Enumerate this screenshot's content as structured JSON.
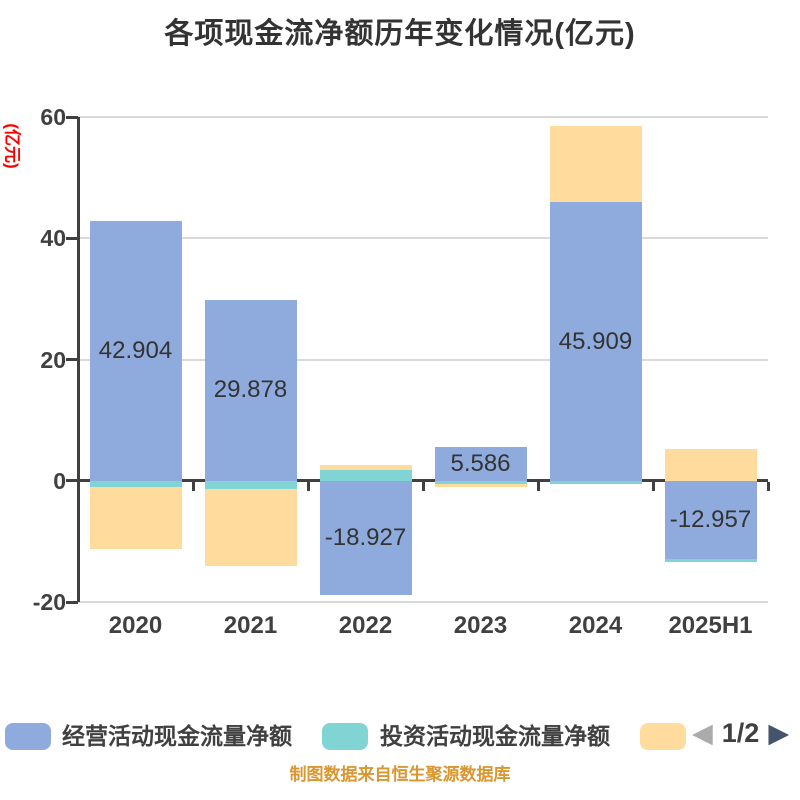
{
  "title": "各项现金流净额历年变化情况(亿元)",
  "chart_data": {
    "type": "bar",
    "stacked": true,
    "title": "各项现金流净额历年变化情况(亿元)",
    "categories": [
      "2020",
      "2021",
      "2022",
      "2023",
      "2024",
      "2025H1"
    ],
    "series": [
      {
        "name": "经营活动现金流量净额",
        "color": "#8FAADC",
        "values": [
          42.904,
          29.878,
          -18.927,
          5.586,
          45.909,
          -12.957
        ],
        "labels": [
          "42.904",
          "29.878",
          "-18.927",
          "5.586",
          "45.909",
          "-12.957"
        ],
        "labels_visible": true
      },
      {
        "name": "投资活动现金流量净额",
        "color": "#80D4D4",
        "values": [
          -1.0,
          -1.3,
          1.7,
          -0.5,
          -0.6,
          -0.4
        ],
        "labels": [],
        "labels_visible": false
      },
      {
        "name": "",
        "color": "#FFDC9E",
        "values": [
          -10.2,
          -12.7,
          0.9,
          -0.5,
          12.6,
          5.2
        ],
        "labels": [],
        "labels_visible": false
      }
    ],
    "xlabel": "",
    "ylabel": "(亿元)",
    "ylabel_color": "#FF0000",
    "ylim": [
      -20,
      60
    ],
    "yticks": [
      60,
      40,
      20,
      0,
      -20
    ],
    "grid": true,
    "legend_position": "bottom"
  },
  "legend": {
    "items": [
      {
        "label": "经营活动现金流量净额",
        "color": "#8FAADC"
      },
      {
        "label": "投资活动现金流量净额",
        "color": "#80D4D4"
      },
      {
        "label": "",
        "color": "#FFDC9E"
      }
    ],
    "pager": {
      "prev_icon": "◀",
      "page_indicator": "1/2",
      "next_icon": "▶",
      "prev_color": "#ABABAB",
      "next_color": "#44546A"
    }
  },
  "source_note": "制图数据来自恒生聚源数据库",
  "colors": {
    "title_text": "#333333",
    "axis_text": "#404040",
    "axis_line": "#404040",
    "gridline": "#D9D9D9",
    "value_label_text": "#333333",
    "source_text": "#DA9730",
    "background": "#FFFFFF"
  }
}
